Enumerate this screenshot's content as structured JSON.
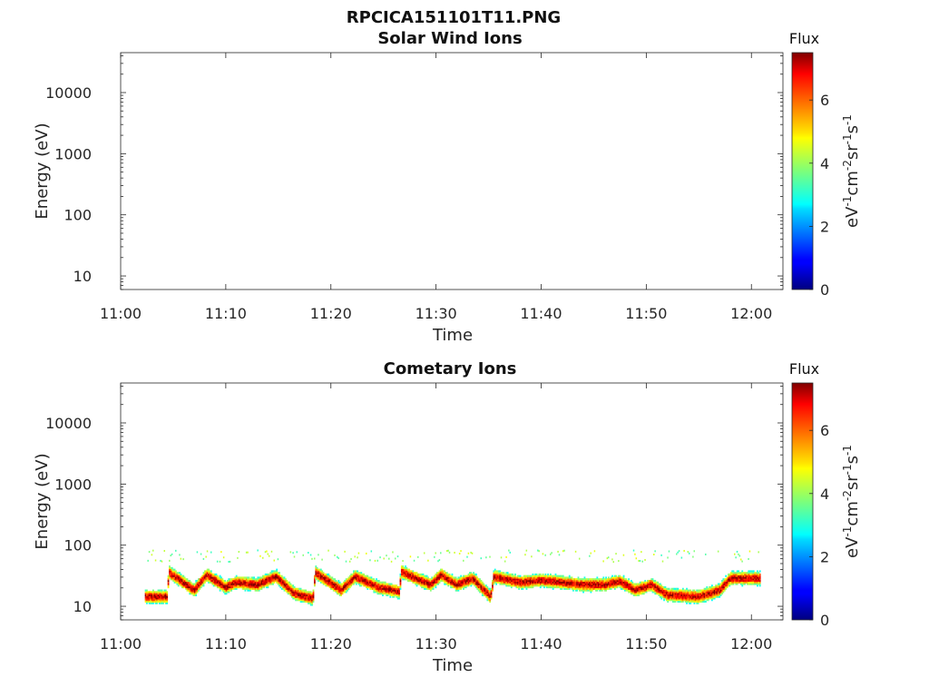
{
  "figure": {
    "filename_title": "RPCICA151101T11.PNG"
  },
  "chart_data": [
    {
      "type": "heatmap",
      "title": "Solar Wind Ions",
      "xlabel": "Time",
      "ylabel": "Energy (eV)",
      "x_ticks": [
        "11:00",
        "11:10",
        "11:20",
        "11:30",
        "11:40",
        "11:50",
        "12:00"
      ],
      "x_range_minutes": [
        0,
        63
      ],
      "y_scale": "log",
      "y_ticks": [
        "10",
        "100",
        "1000",
        "10000"
      ],
      "y_range": [
        6,
        45000
      ],
      "colorbar": {
        "label_top": "Flux",
        "unit_label": "eV-1cm-2sr-1s-1",
        "ticks": [
          "0",
          "2",
          "4",
          "6"
        ],
        "range": [
          0,
          7.5
        ],
        "colormap": "jet"
      },
      "data": []
    },
    {
      "type": "heatmap",
      "title": "Cometary Ions",
      "xlabel": "Time",
      "ylabel": "Energy (eV)",
      "x_ticks": [
        "11:00",
        "11:10",
        "11:20",
        "11:30",
        "11:40",
        "11:50",
        "12:00"
      ],
      "x_range_minutes": [
        0,
        63
      ],
      "y_scale": "log",
      "y_ticks": [
        "10",
        "100",
        "1000",
        "10000"
      ],
      "y_range": [
        6,
        45000
      ],
      "colorbar": {
        "label_top": "Flux",
        "unit_label": "eV-1cm-2sr-1s-1",
        "ticks": [
          "0",
          "2",
          "4",
          "6"
        ],
        "range": [
          0,
          7.5
        ],
        "colormap": "jet"
      },
      "data_extent_minutes": [
        2.3,
        60.8
      ],
      "band_peak_energy_eV": [
        {
          "t": 2.3,
          "e": 14
        },
        {
          "t": 4.4,
          "e": 14
        },
        {
          "t": 4.6,
          "e": 35
        },
        {
          "t": 7,
          "e": 18
        },
        {
          "t": 8.2,
          "e": 32
        },
        {
          "t": 10,
          "e": 20
        },
        {
          "t": 11,
          "e": 24
        },
        {
          "t": 13,
          "e": 22
        },
        {
          "t": 14.8,
          "e": 30
        },
        {
          "t": 16.5,
          "e": 16
        },
        {
          "t": 18.3,
          "e": 13
        },
        {
          "t": 18.5,
          "e": 35
        },
        {
          "t": 21,
          "e": 18
        },
        {
          "t": 22.3,
          "e": 30
        },
        {
          "t": 24.5,
          "e": 20
        },
        {
          "t": 26.5,
          "e": 17
        },
        {
          "t": 26.7,
          "e": 36
        },
        {
          "t": 29.5,
          "e": 22
        },
        {
          "t": 30.5,
          "e": 32
        },
        {
          "t": 32,
          "e": 22
        },
        {
          "t": 33.5,
          "e": 28
        },
        {
          "t": 35.2,
          "e": 14
        },
        {
          "t": 35.5,
          "e": 30
        },
        {
          "t": 38,
          "e": 24
        },
        {
          "t": 40,
          "e": 26
        },
        {
          "t": 42,
          "e": 24
        },
        {
          "t": 44,
          "e": 22
        },
        {
          "t": 46,
          "e": 22
        },
        {
          "t": 47.5,
          "e": 25
        },
        {
          "t": 49,
          "e": 18
        },
        {
          "t": 50.5,
          "e": 22
        },
        {
          "t": 52,
          "e": 15
        },
        {
          "t": 55,
          "e": 14
        },
        {
          "t": 57,
          "e": 18
        },
        {
          "t": 58,
          "e": 28
        },
        {
          "t": 60.8,
          "e": 28
        }
      ],
      "max_flux": 7.2
    }
  ]
}
